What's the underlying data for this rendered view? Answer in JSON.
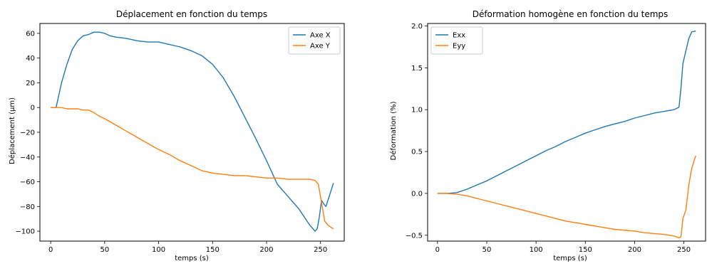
{
  "chart_data": [
    {
      "type": "line",
      "title": "Déplacement en fonction du temps",
      "xlabel": "temps (s)",
      "ylabel": "Déplacement (µm)",
      "xlim": [
        -10,
        272
      ],
      "ylim": [
        -108,
        68
      ],
      "xticks": [
        0,
        50,
        100,
        150,
        200,
        250
      ],
      "yticks": [
        -100,
        -80,
        -60,
        -40,
        -20,
        0,
        20,
        40,
        60
      ],
      "ytick_labels": [
        "−100",
        "−80",
        "−60",
        "−40",
        "−20",
        "0",
        "20",
        "40",
        "60"
      ],
      "grid": false,
      "legend": "top-right",
      "series": [
        {
          "name": "Axe X",
          "color": "#1f77b4",
          "x": [
            0,
            5,
            10,
            15,
            20,
            25,
            30,
            35,
            40,
            45,
            50,
            55,
            60,
            70,
            80,
            90,
            100,
            110,
            120,
            130,
            140,
            150,
            160,
            170,
            180,
            190,
            200,
            210,
            220,
            230,
            240,
            245,
            247,
            249,
            251,
            253,
            255,
            258,
            262
          ],
          "y": [
            0,
            0,
            20,
            35,
            47,
            54,
            58,
            59,
            61,
            61,
            60,
            58,
            57,
            56,
            54,
            53,
            53,
            51,
            49,
            46,
            42,
            35,
            24,
            9,
            -8,
            -25,
            -43,
            -62,
            -72,
            -82,
            -95,
            -100,
            -98,
            -88,
            -75,
            -78,
            -80,
            -72,
            -61
          ]
        },
        {
          "name": "Axe Y",
          "color": "#ff7f0e",
          "x": [
            0,
            5,
            10,
            15,
            20,
            25,
            30,
            35,
            40,
            45,
            50,
            60,
            70,
            80,
            90,
            100,
            110,
            120,
            130,
            140,
            150,
            160,
            170,
            180,
            190,
            200,
            210,
            220,
            230,
            240,
            245,
            248,
            251,
            254,
            257,
            260,
            262
          ],
          "y": [
            0,
            0,
            0,
            -1,
            -1,
            -1,
            -2,
            -2,
            -4,
            -7,
            -9,
            -14,
            -19,
            -24,
            -29,
            -34,
            -38,
            -43,
            -47,
            -51,
            -53,
            -54,
            -55,
            -55,
            -56,
            -57,
            -57,
            -58,
            -58,
            -58,
            -59,
            -62,
            -77,
            -92,
            -95,
            -97,
            -98
          ]
        }
      ]
    },
    {
      "type": "line",
      "title": "Déformation homogène en fonction du temps",
      "xlabel": "temps (s)",
      "ylabel": "Déformation (%)",
      "xlim": [
        -10,
        272
      ],
      "ylim": [
        -0.57,
        2.03
      ],
      "xticks": [
        0,
        50,
        100,
        150,
        200,
        250
      ],
      "yticks": [
        -0.5,
        0.0,
        0.5,
        1.0,
        1.5,
        2.0
      ],
      "ytick_labels": [
        "−0.5",
        "0.0",
        "0.5",
        "1.0",
        "1.5",
        "2.0"
      ],
      "grid": false,
      "legend": "top-left",
      "series": [
        {
          "name": "Exx",
          "color": "#1f77b4",
          "x": [
            0,
            10,
            20,
            30,
            40,
            50,
            60,
            70,
            80,
            90,
            100,
            110,
            120,
            130,
            140,
            150,
            160,
            170,
            180,
            190,
            200,
            210,
            220,
            230,
            240,
            245,
            247,
            249,
            252,
            255,
            258,
            262
          ],
          "y": [
            0,
            0,
            0.01,
            0.05,
            0.1,
            0.15,
            0.21,
            0.27,
            0.33,
            0.39,
            0.45,
            0.51,
            0.56,
            0.62,
            0.67,
            0.72,
            0.76,
            0.8,
            0.83,
            0.86,
            0.9,
            0.93,
            0.96,
            0.98,
            1.0,
            1.03,
            1.25,
            1.55,
            1.7,
            1.85,
            1.93,
            1.94
          ]
        },
        {
          "name": "Eyy",
          "color": "#ff7f0e",
          "x": [
            0,
            10,
            20,
            30,
            40,
            50,
            60,
            70,
            80,
            90,
            100,
            110,
            120,
            130,
            140,
            150,
            160,
            170,
            180,
            190,
            200,
            210,
            220,
            230,
            240,
            245,
            247,
            249,
            252,
            255,
            258,
            262
          ],
          "y": [
            0,
            0,
            -0.01,
            -0.03,
            -0.06,
            -0.09,
            -0.12,
            -0.15,
            -0.18,
            -0.21,
            -0.24,
            -0.27,
            -0.3,
            -0.33,
            -0.35,
            -0.37,
            -0.39,
            -0.41,
            -0.43,
            -0.44,
            -0.45,
            -0.47,
            -0.48,
            -0.49,
            -0.51,
            -0.53,
            -0.52,
            -0.3,
            -0.2,
            0.1,
            0.3,
            0.45
          ]
        }
      ]
    }
  ]
}
